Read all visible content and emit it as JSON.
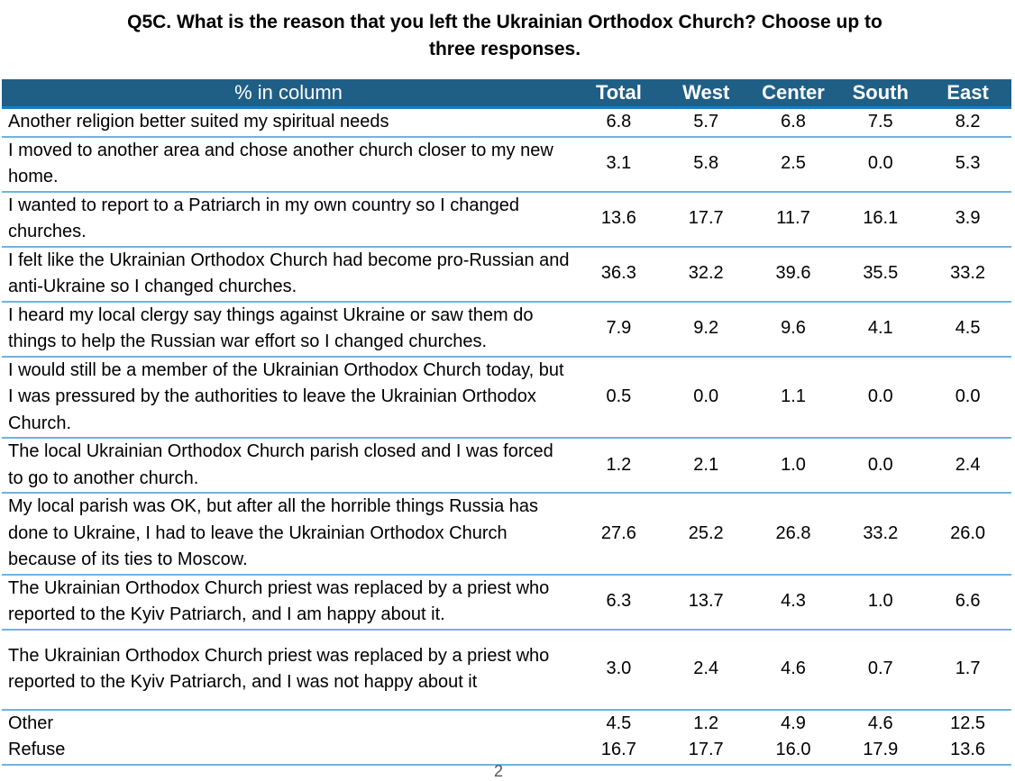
{
  "title": {
    "line1": "Q5C. What is the reason that you left the Ukrainian Orthodox Church? Choose up to",
    "line2": "three responses."
  },
  "table": {
    "header": {
      "label": "% in column",
      "columns": [
        "Total",
        "West",
        "Center",
        "South",
        "East"
      ]
    },
    "rows": [
      {
        "label": "Another religion better suited my spiritual needs",
        "values": [
          "6.8",
          "5.7",
          "6.8",
          "7.5",
          "8.2"
        ]
      },
      {
        "label": "I moved to another area and chose another church closer to my new home.",
        "values": [
          "3.1",
          "5.8",
          "2.5",
          "0.0",
          "5.3"
        ]
      },
      {
        "label": "I wanted to report to a Patriarch in my own country so I changed churches.",
        "values": [
          "13.6",
          "17.7",
          "11.7",
          "16.1",
          "3.9"
        ]
      },
      {
        "label": "I felt like the Ukrainian Orthodox Church had become pro-Russian and anti-Ukraine so I changed churches.",
        "values": [
          "36.3",
          "32.2",
          "39.6",
          "35.5",
          "33.2"
        ]
      },
      {
        "label": "I heard my local clergy say things against Ukraine or saw them do things to help the Russian war effort so I changed churches.",
        "values": [
          "7.9",
          "9.2",
          "9.6",
          "4.1",
          "4.5"
        ]
      },
      {
        "label": "I would still be a member of the Ukrainian Orthodox Church today, but I was pressured by the authorities to leave the Ukrainian Orthodox Church.",
        "values": [
          "0.5",
          "0.0",
          "1.1",
          "0.0",
          "0.0"
        ]
      },
      {
        "label": "The local Ukrainian Orthodox Church parish closed and I was forced to go to another church.",
        "values": [
          "1.2",
          "2.1",
          "1.0",
          "0.0",
          "2.4"
        ]
      },
      {
        "label": "My local parish was OK, but after all the horrible things Russia has done to Ukraine, I had to leave the Ukrainian Orthodox Church because of its ties to Moscow.",
        "values": [
          "27.6",
          "25.2",
          "26.8",
          "33.2",
          "26.0"
        ]
      },
      {
        "label": "The Ukrainian Orthodox Church priest was replaced by a priest who reported to the Kyiv Patriarch, and I am happy about it.",
        "values": [
          "6.3",
          "13.7",
          "4.3",
          "1.0",
          "6.6"
        ]
      },
      {
        "label": "The Ukrainian Orthodox Church priest was replaced by a priest who reported to the Kyiv Patriarch, and I was not happy about it",
        "values": [
          "3.0",
          "2.4",
          "4.6",
          "0.7",
          "1.7"
        ]
      },
      {
        "label": "Other",
        "values": [
          "4.5",
          "1.2",
          "4.9",
          "4.6",
          "12.5"
        ]
      },
      {
        "label": "Refuse",
        "values": [
          "16.7",
          "17.7",
          "16.0",
          "17.9",
          "13.6"
        ]
      }
    ]
  },
  "page_number": "2"
}
